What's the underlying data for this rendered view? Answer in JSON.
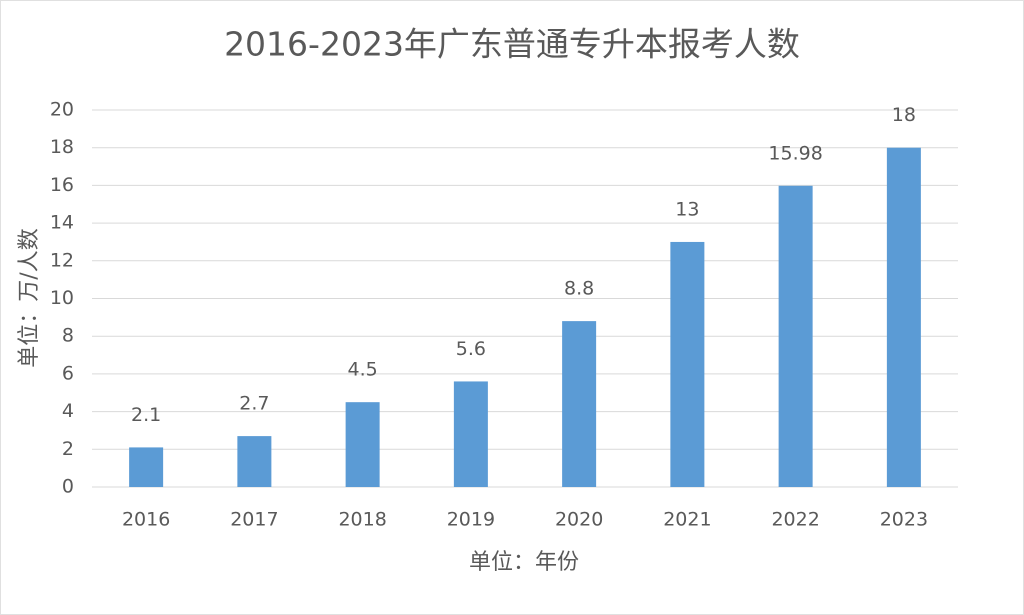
{
  "chart_data": {
    "type": "bar",
    "title": "2016-2023年广东普通专升本报考人数",
    "x_label": "单位：年份",
    "y_label": "单位：万/人数",
    "categories": [
      "2016",
      "2017",
      "2018",
      "2019",
      "2020",
      "2021",
      "2022",
      "2023"
    ],
    "values": [
      2.1,
      2.7,
      4.5,
      5.6,
      8.8,
      13,
      15.98,
      18
    ],
    "color": "#5b9bd5",
    "ylim": [
      0,
      20
    ],
    "yticks": [
      0,
      2,
      4,
      6,
      8,
      10,
      12,
      14,
      16,
      18,
      20
    ],
    "grid": true
  }
}
